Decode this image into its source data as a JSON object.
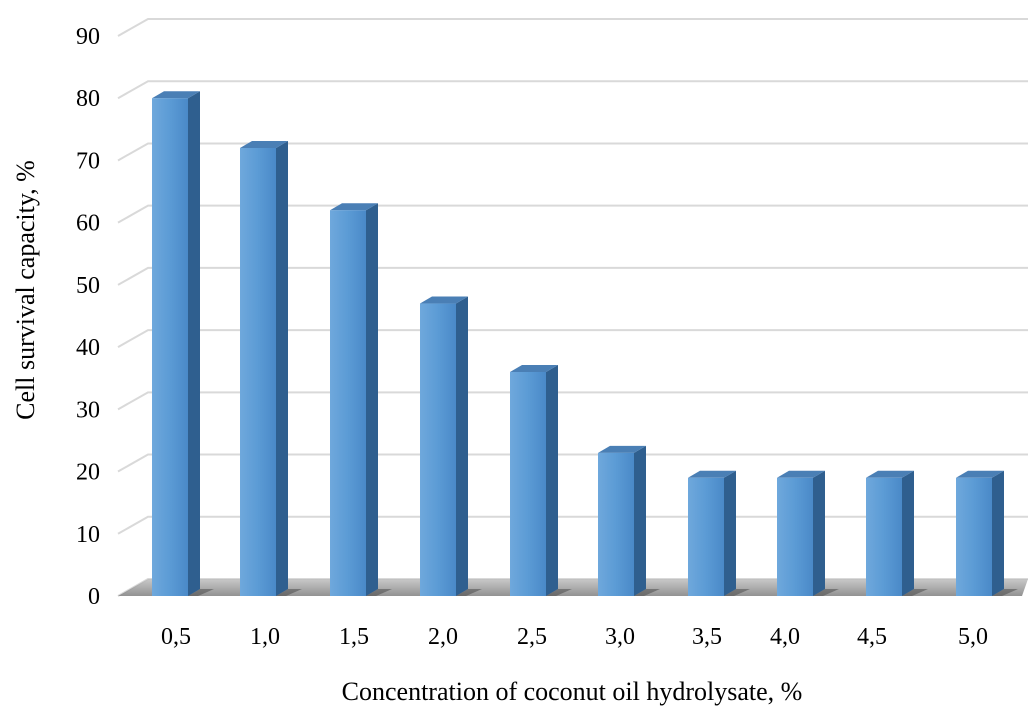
{
  "chart_data": {
    "type": "bar",
    "title": "",
    "xlabel": "Concentration of coconut oil hydrolysate, %",
    "ylabel": "Cell survival capacity, %",
    "categories": [
      "0,5",
      "1,0",
      "1,5",
      "2,0",
      "2,5",
      "3,0",
      "3,5",
      "4,0",
      "4,5",
      "5,0"
    ],
    "values": [
      80,
      72,
      62,
      47,
      36,
      23,
      19,
      19,
      19,
      19
    ],
    "ylim": [
      0,
      90
    ],
    "yticks": [
      0,
      10,
      20,
      30,
      40,
      50,
      60,
      70,
      80,
      90
    ],
    "grid": true,
    "style": "3d-column",
    "colors": {
      "bar_front": "#5b9bd5",
      "bar_side": "#2f5f8f",
      "bar_top": "#4a7fb5",
      "gridline": "#d9d9d9",
      "floor_shadow": "#555555"
    }
  }
}
